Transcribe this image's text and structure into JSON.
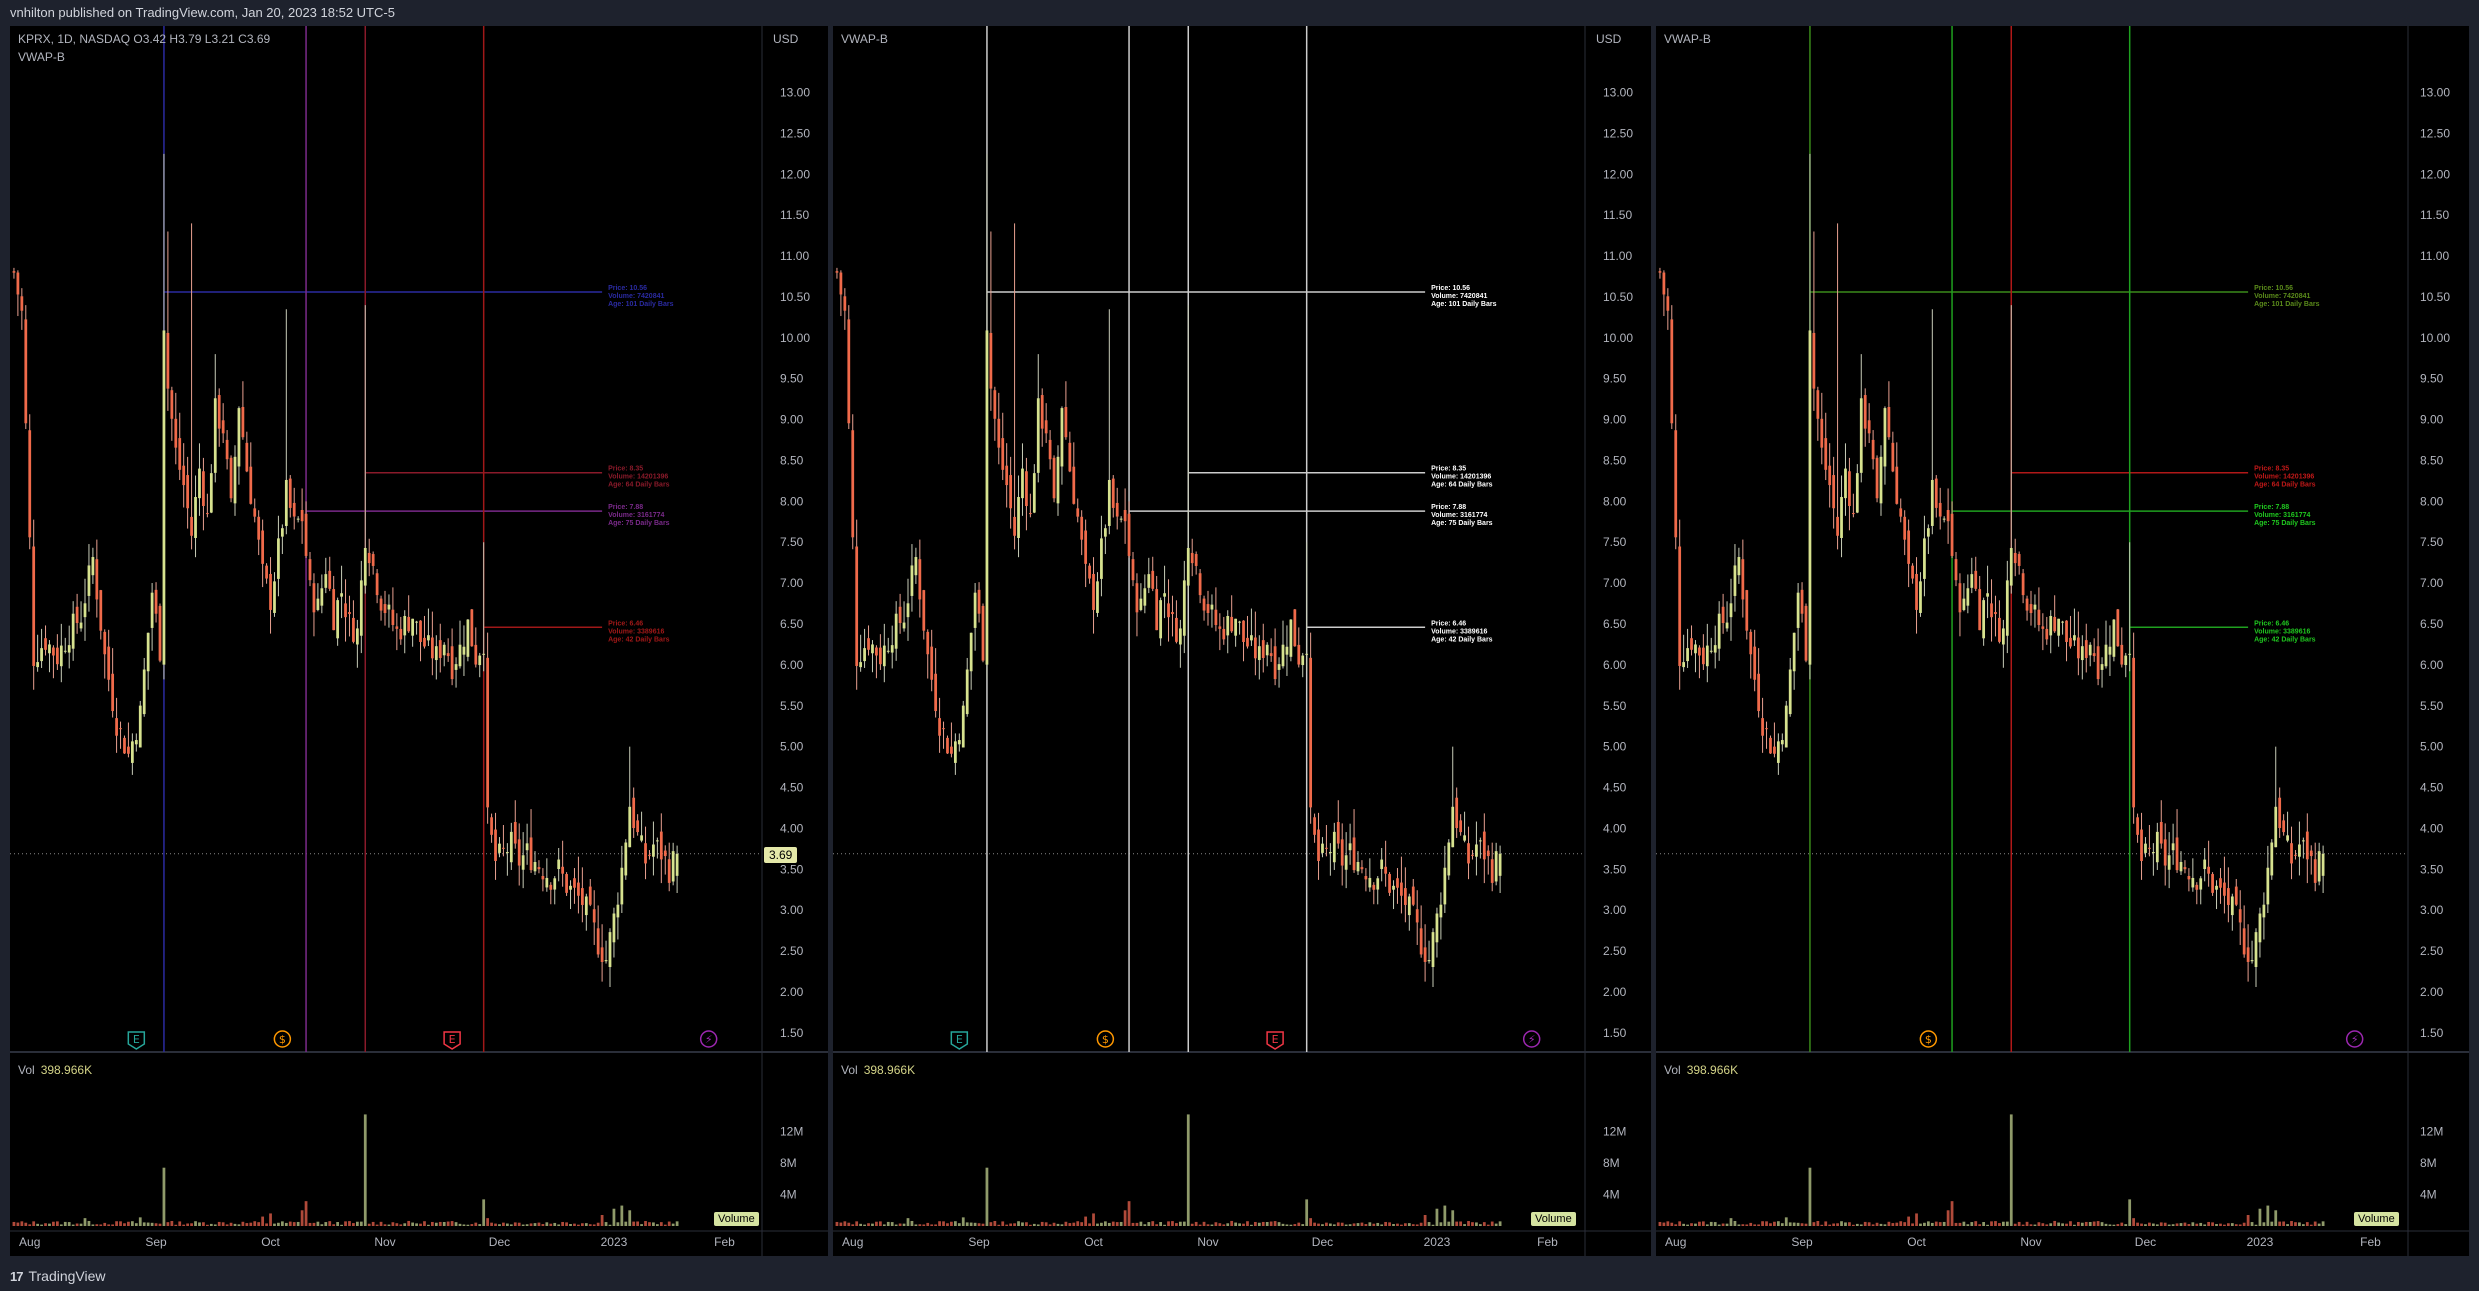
{
  "header": {
    "publisher": "vnhilton published on TradingView.com, Jan 20, 2023 18:52 UTC-5"
  },
  "footer": {
    "brand": "TradingView",
    "logo": "tradingview-logo"
  },
  "panels": [
    {
      "legend_line1_prefix": "KPRX, 1D, NASDAQ",
      "legend_o": "O3.42",
      "legend_h": "H3.79",
      "legend_l": "L3.21",
      "legend_c": "C3.69",
      "indicator": "VWAP-B",
      "currency": "USD",
      "vol_label": "Vol",
      "vol_value": "398.966K",
      "vol_badge": "Volume",
      "price_badge": "3.69",
      "theme": "dim"
    },
    {
      "indicator": "VWAP-B",
      "currency": "USD",
      "vol_label": "Vol",
      "vol_value": "398.966K",
      "vol_badge": "Volume",
      "theme": "white"
    },
    {
      "indicator": "VWAP-B",
      "currency": "",
      "vol_label": "Vol",
      "vol_value": "398.966K",
      "vol_badge": "Volume",
      "theme": "green"
    }
  ],
  "chart_data": {
    "type": "candlestick",
    "symbol": "KPRX",
    "interval": "1D",
    "exchange": "NASDAQ",
    "last": {
      "open": 3.42,
      "high": 3.79,
      "low": 3.21,
      "close": 3.69
    },
    "y_ticks": [
      "13.00",
      "12.50",
      "12.00",
      "11.50",
      "11.00",
      "10.50",
      "10.00",
      "9.50",
      "9.00",
      "8.50",
      "8.00",
      "7.50",
      "7.00",
      "6.50",
      "6.00",
      "5.50",
      "5.00",
      "4.50",
      "4.00",
      "3.50",
      "3.00",
      "2.50",
      "2.00",
      "1.50"
    ],
    "ylim": [
      1.4,
      13.3
    ],
    "x_labels": [
      {
        "label": "Aug",
        "day": 5
      },
      {
        "label": "Sep",
        "day": 37
      },
      {
        "label": "Oct",
        "day": 66
      },
      {
        "label": "Nov",
        "day": 95
      },
      {
        "label": "Dec",
        "day": 124
      },
      {
        "label": "2023",
        "day": 153
      },
      {
        "label": "Feb",
        "day": 181
      }
    ],
    "volume_ticks": [
      "12M",
      "8M",
      "4M"
    ],
    "volume_max": 14000000,
    "last_volume": "398.966K",
    "events": [
      {
        "label": "E",
        "day": 32,
        "kind": "earnings",
        "color": "#26a69a"
      },
      {
        "label": "$",
        "day": 69,
        "kind": "dividend",
        "color": "#ff9800"
      },
      {
        "label": "E",
        "day": 112,
        "kind": "earnings",
        "color": "#f23645"
      },
      {
        "label": "⚡",
        "day": 177,
        "kind": "split",
        "color": "#9c27b0"
      }
    ],
    "anchors": [
      {
        "day": 39,
        "price": 10.56,
        "volume": "7420841",
        "age": "101 Daily Bars"
      },
      {
        "day": 75,
        "price": 7.88,
        "volume": "3161774",
        "age": "75 Daily Bars"
      },
      {
        "day": 90,
        "price": 8.35,
        "volume": "14201396",
        "age": "64 Daily Bars"
      },
      {
        "day": 120,
        "price": 6.46,
        "volume": "3389616",
        "age": "42 Daily Bars"
      }
    ],
    "anchor_label_prefix": {
      "price": "Price: ",
      "volume": "Volume: ",
      "age": "Age: "
    },
    "line_colors": {
      "dim": [
        "#2a2aa0",
        "#7a2a8a",
        "#8a1a2a",
        "#a01818"
      ],
      "white": [
        "#cccccc",
        "#cccccc",
        "#cccccc",
        "#cccccc"
      ],
      "green": [
        "#3a8a1a",
        "#1fa01f",
        "#b01818",
        "#1fa01f"
      ]
    },
    "label_colors": {
      "dim": [
        "#2a2aa0",
        "#7a2a8a",
        "#8a1a2a",
        "#a01818"
      ],
      "white": [
        "#ffffff",
        "#ffffff",
        "#ffffff",
        "#ffffff"
      ],
      "green": [
        "#5a8a1a",
        "#1fc81f",
        "#c01818",
        "#1fc81f"
      ]
    },
    "volume_spikes": [
      {
        "day": 39,
        "volume": 7420841
      },
      {
        "day": 75,
        "volume": 3161774
      },
      {
        "day": 90,
        "volume": 14201396
      },
      {
        "day": 120,
        "volume": 3389616
      },
      {
        "day": 155,
        "volume": 2600000
      }
    ],
    "price_points": [
      [
        1,
        10.8
      ],
      [
        3,
        10.3
      ],
      [
        6,
        6.1
      ],
      [
        9,
        6.3
      ],
      [
        12,
        6.1
      ],
      [
        15,
        6.4
      ],
      [
        18,
        6.6
      ],
      [
        21,
        7.3
      ],
      [
        24,
        6.1
      ],
      [
        27,
        5.3
      ],
      [
        30,
        4.9
      ],
      [
        33,
        5.4
      ],
      [
        36,
        6.9
      ],
      [
        38,
        6.2
      ],
      [
        39,
        10.2
      ],
      [
        40,
        9.4
      ],
      [
        42,
        8.6
      ],
      [
        44,
        8.2
      ],
      [
        46,
        7.6
      ],
      [
        48,
        8.4
      ],
      [
        50,
        7.8
      ],
      [
        52,
        9.1
      ],
      [
        54,
        8.9
      ],
      [
        56,
        7.9
      ],
      [
        58,
        9.2
      ],
      [
        60,
        8.4
      ],
      [
        62,
        7.8
      ],
      [
        64,
        7.1
      ],
      [
        66,
        6.8
      ],
      [
        68,
        7.4
      ],
      [
        70,
        8.1
      ],
      [
        72,
        7.7
      ],
      [
        74,
        7.8
      ],
      [
        76,
        6.9
      ],
      [
        78,
        6.7
      ],
      [
        80,
        7.2
      ],
      [
        82,
        6.6
      ],
      [
        84,
        6.9
      ],
      [
        86,
        6.5
      ],
      [
        88,
        6.4
      ],
      [
        90,
        7.6
      ],
      [
        92,
        7.2
      ],
      [
        94,
        6.8
      ],
      [
        96,
        6.6
      ],
      [
        98,
        6.4
      ],
      [
        100,
        6.5
      ],
      [
        102,
        6.6
      ],
      [
        104,
        6.3
      ],
      [
        106,
        6.2
      ],
      [
        108,
        6.1
      ],
      [
        110,
        6.3
      ],
      [
        112,
        6.0
      ],
      [
        114,
        6.2
      ],
      [
        116,
        6.5
      ],
      [
        118,
        6.1
      ],
      [
        120,
        6.3
      ],
      [
        121,
        4.1
      ],
      [
        123,
        3.6
      ],
      [
        125,
        3.7
      ],
      [
        127,
        3.8
      ],
      [
        129,
        3.6
      ],
      [
        131,
        3.7
      ],
      [
        133,
        3.6
      ],
      [
        135,
        3.5
      ],
      [
        137,
        3.4
      ],
      [
        139,
        3.5
      ],
      [
        141,
        3.3
      ],
      [
        143,
        3.2
      ],
      [
        145,
        3.1
      ],
      [
        147,
        2.9
      ],
      [
        149,
        2.6
      ],
      [
        151,
        2.4
      ],
      [
        153,
        2.9
      ],
      [
        155,
        3.5
      ],
      [
        157,
        4.3
      ],
      [
        159,
        3.9
      ],
      [
        161,
        3.6
      ],
      [
        163,
        3.8
      ],
      [
        165,
        3.7
      ],
      [
        167,
        3.5
      ],
      [
        169,
        3.69
      ]
    ]
  }
}
